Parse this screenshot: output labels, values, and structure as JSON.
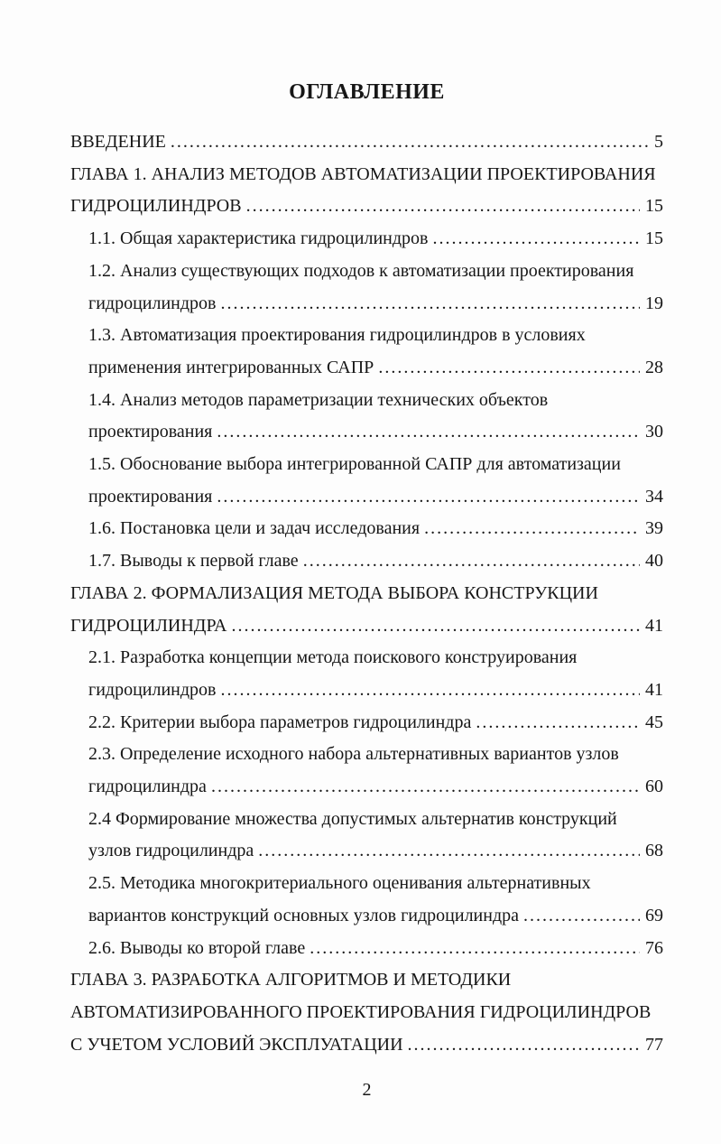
{
  "colors": {
    "page_background": "#fdfdfd",
    "text": "#161616"
  },
  "toc": {
    "title": "ОГЛАВЛЕНИЕ",
    "footer_page_number": "2",
    "rows": [
      {
        "text": "ВВЕДЕНИЕ",
        "page": "5",
        "indent": 0
      },
      {
        "text": "ГЛАВА 1. АНАЛИЗ МЕТОДОВ АВТОМАТИЗАЦИИ ПРОЕКТИРОВАНИЯ",
        "indent": 0
      },
      {
        "text": "ГИДРОЦИЛИНДРОВ",
        "page": "15",
        "indent": 0
      },
      {
        "text": "1.1. Общая характеристика гидроцилиндров",
        "page": "15",
        "indent": 1
      },
      {
        "text": "1.2. Анализ существующих подходов к автоматизации проектирования",
        "indent": 1
      },
      {
        "text": "гидроцилиндров",
        "page": "19",
        "indent": 1
      },
      {
        "text": "1.3. Автоматизация проектирования гидроцилиндров в условиях",
        "indent": 1
      },
      {
        "text": "применения интегрированных САПР",
        "page": "28",
        "indent": 1
      },
      {
        "text": "1.4. Анализ методов параметризации технических объектов",
        "indent": 1
      },
      {
        "text": "проектирования",
        "page": "30",
        "indent": 1
      },
      {
        "text": "1.5. Обоснование выбора интегрированной САПР для автоматизации",
        "indent": 1
      },
      {
        "text": "проектирования",
        "page": "34",
        "indent": 1
      },
      {
        "text": "1.6. Постановка цели и задач исследования",
        "page": "39",
        "indent": 1
      },
      {
        "text": "1.7. Выводы к первой главе",
        "page": "40",
        "indent": 1
      },
      {
        "text": "ГЛАВА 2. ФОРМАЛИЗАЦИЯ МЕТОДА ВЫБОРА КОНСТРУКЦИИ",
        "indent": 0
      },
      {
        "text": "ГИДРОЦИЛИНДРА",
        "page": "41",
        "indent": 0
      },
      {
        "text": "2.1. Разработка концепции метода поискового конструирования",
        "indent": 1
      },
      {
        "text": "гидроцилиндров",
        "page": "41",
        "indent": 1
      },
      {
        "text": "2.2. Критерии выбора параметров гидроцилиндра",
        "page": "45",
        "indent": 1
      },
      {
        "text": "2.3. Определение исходного набора альтернативных вариантов узлов",
        "indent": 1
      },
      {
        "text": "гидроцилиндра",
        "page": "60",
        "indent": 1
      },
      {
        "text": "2.4 Формирование множества допустимых альтернатив конструкций",
        "indent": 1
      },
      {
        "text": "узлов гидроцилиндра",
        "page": "68",
        "indent": 1
      },
      {
        "text": "2.5. Методика многокритериального оценивания альтернативных",
        "indent": 1
      },
      {
        "text": "вариантов конструкций основных узлов гидроцилиндра",
        "page": "69",
        "indent": 1
      },
      {
        "text": "2.6. Выводы ко второй главе",
        "page": "76",
        "indent": 1
      },
      {
        "text": "ГЛАВА 3. РАЗРАБОТКА АЛГОРИТМОВ И МЕТОДИКИ",
        "indent": 0
      },
      {
        "text": "АВТОМАТИЗИРОВАННОГО ПРОЕКТИРОВАНИЯ ГИДРОЦИЛИНДРОВ",
        "indent": 0
      },
      {
        "text": "С УЧЕТОМ УСЛОВИЙ ЭКСПЛУАТАЦИИ",
        "page": "77",
        "indent": 0
      }
    ]
  }
}
